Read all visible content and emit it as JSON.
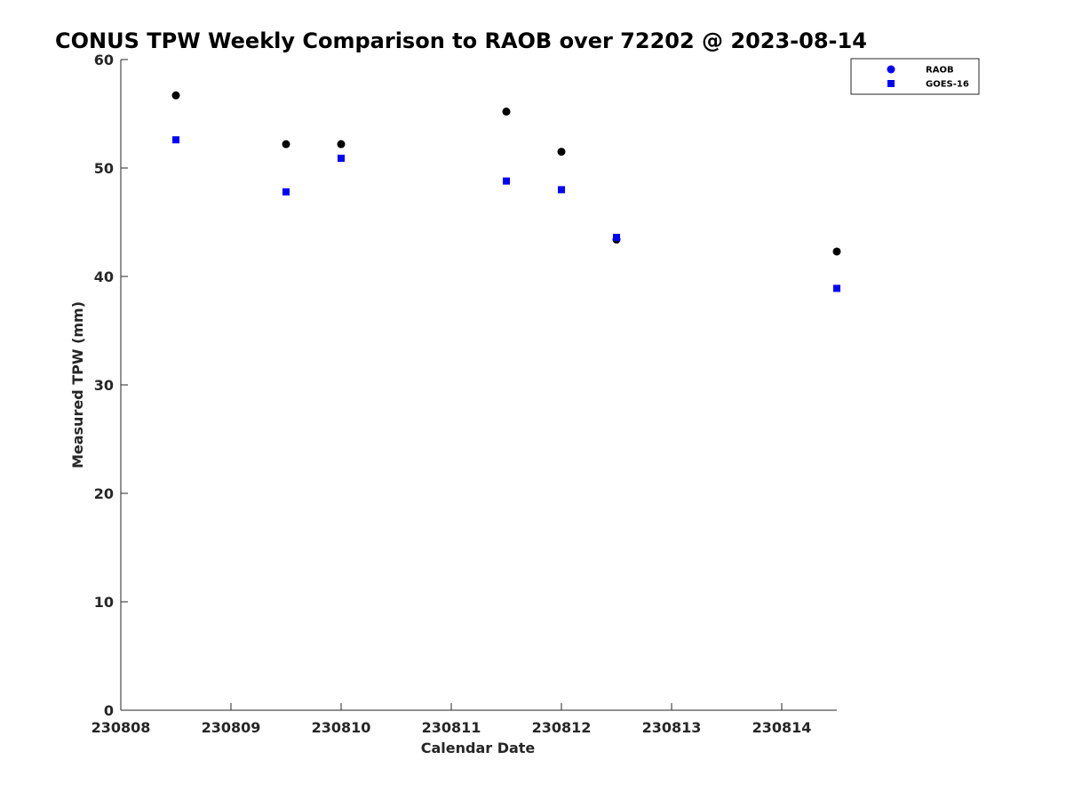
{
  "chart_data": {
    "type": "scatter",
    "title": "CONUS TPW Weekly Comparison to RAOB over 72202 @ 2023-08-14",
    "xlabel": "Calendar Date",
    "ylabel": "Measured TPW (mm)",
    "xlim": [
      "2023-08-08 00:00",
      "2023-08-14 12:00"
    ],
    "ylim": [
      0,
      60
    ],
    "x_ticks": [
      "230808",
      "230809",
      "230810",
      "230811",
      "230812",
      "230813",
      "230814"
    ],
    "y_ticks": [
      "0",
      "10",
      "20",
      "30",
      "40",
      "50",
      "60"
    ],
    "grid": false,
    "legend_position": "top-right",
    "series": [
      {
        "name": "RAOB",
        "marker": "circle",
        "color": "#000000",
        "legend_color": "#0000ff",
        "points": [
          {
            "x": "2023-08-08 12:00",
            "y": 56.7
          },
          {
            "x": "2023-08-09 12:00",
            "y": 52.2
          },
          {
            "x": "2023-08-10 00:00",
            "y": 52.2
          },
          {
            "x": "2023-08-11 12:00",
            "y": 55.2
          },
          {
            "x": "2023-08-12 00:00",
            "y": 51.5
          },
          {
            "x": "2023-08-12 12:00",
            "y": 43.4
          },
          {
            "x": "2023-08-14 12:00",
            "y": 42.3
          }
        ]
      },
      {
        "name": "GOES-16",
        "marker": "square",
        "color": "#0000ff",
        "legend_color": "#0000ff",
        "points": [
          {
            "x": "2023-08-08 12:00",
            "y": 52.6
          },
          {
            "x": "2023-08-09 12:00",
            "y": 47.8
          },
          {
            "x": "2023-08-10 00:00",
            "y": 50.9
          },
          {
            "x": "2023-08-11 12:00",
            "y": 48.8
          },
          {
            "x": "2023-08-12 00:00",
            "y": 48.0
          },
          {
            "x": "2023-08-12 12:00",
            "y": 43.6
          },
          {
            "x": "2023-08-14 12:00",
            "y": 38.9
          }
        ]
      }
    ]
  }
}
